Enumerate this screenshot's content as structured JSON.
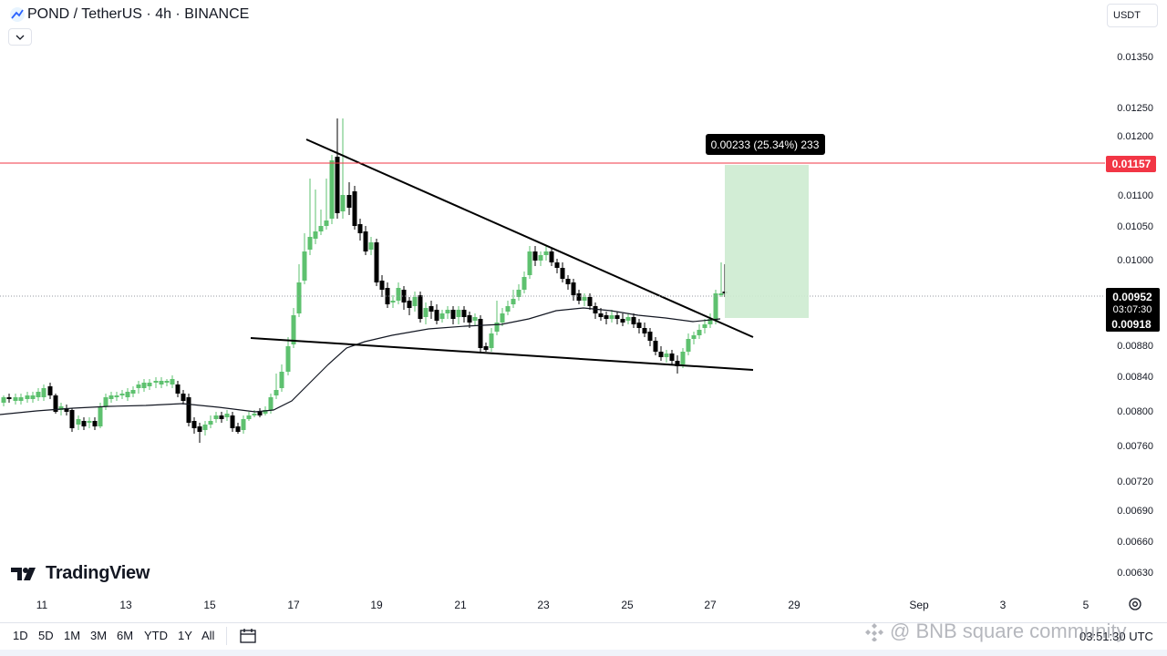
{
  "header": {
    "symbol_title": "POND / TetherUS · 4h · BINANCE",
    "currency": "USDT"
  },
  "price_axis": {
    "ticks": [
      "0.01350",
      "0.01250",
      "0.01200",
      "0.01100",
      "0.01050",
      "0.01000",
      "0.00880",
      "0.00840",
      "0.00800",
      "0.00760",
      "0.00720",
      "0.00690",
      "0.00660",
      "0.00630"
    ],
    "alert_price": "0.01157",
    "current_price": "0.00952",
    "countdown": "03:07:30",
    "ma_price": "0.00918"
  },
  "time_axis": {
    "labels": [
      "11",
      "13",
      "15",
      "17",
      "19",
      "21",
      "23",
      "25",
      "27",
      "29",
      "Sep",
      "3",
      "5"
    ]
  },
  "measure_label": "0.00233 (25.34%) 233",
  "branding": {
    "name": "TradingView"
  },
  "bottom_bar": {
    "ranges": [
      "1D",
      "5D",
      "1M",
      "3M",
      "6M",
      "YTD",
      "1Y",
      "All"
    ],
    "clock": "03:51:30 UTC"
  },
  "watermark": "@ BNB square community",
  "colors": {
    "up": "#5ec16f",
    "down": "#000000",
    "alert": "#f23645",
    "measure_fill": "#cdebd0",
    "ma_line": "#131722"
  },
  "icons": [
    "tradingview-logo-icon",
    "chevron-down-icon",
    "calendar-icon",
    "settings-icon",
    "binance-logo-icon"
  ]
}
